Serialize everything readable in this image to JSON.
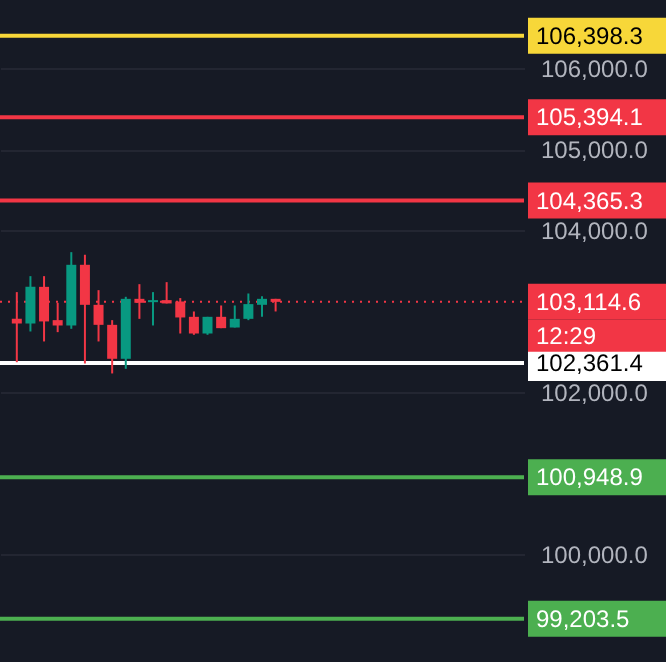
{
  "chart_data": {
    "type": "candlestick",
    "categories": [
      null,
      null,
      null,
      null,
      null,
      null,
      null,
      null,
      null,
      null,
      null,
      null,
      null,
      null,
      null,
      null,
      null,
      null,
      null,
      null,
      null,
      null,
      null,
      null,
      null,
      null,
      null,
      null,
      null,
      null,
      null,
      null,
      null,
      null,
      null,
      null,
      null
    ],
    "ohlc": [
      [
        102905,
        103235,
        102370,
        102848
      ],
      [
        102848,
        103432,
        102749,
        103300
      ],
      [
        103300,
        103432,
        102626,
        102873
      ],
      [
        102889,
        103103,
        102741,
        102823
      ],
      [
        102823,
        103728,
        102782,
        103572
      ],
      [
        103572,
        103696,
        102354,
        103078
      ],
      [
        103078,
        103259,
        102626,
        102831
      ],
      [
        102831,
        102889,
        102231,
        102412
      ],
      [
        102412,
        103177,
        102288,
        103152
      ],
      [
        103152,
        103333,
        102905,
        103103
      ],
      [
        103111,
        103235,
        102823,
        103136
      ],
      [
        103136,
        103358,
        103095,
        103095
      ],
      [
        103119,
        103161,
        102724,
        102922
      ],
      [
        102930,
        102996,
        102708,
        102724
      ],
      [
        102724,
        102930,
        102708,
        102930
      ],
      [
        102930,
        103070,
        102790,
        102790
      ],
      [
        102798,
        103070,
        102798,
        102905
      ],
      [
        102905,
        103218,
        102889,
        103087
      ],
      [
        103078,
        103185,
        102930,
        103152
      ],
      [
        103152,
        103152,
        102996,
        103114.6
      ],
      null,
      null,
      null,
      null,
      null,
      null,
      null,
      null,
      null,
      null,
      null,
      null,
      null,
      null,
      null,
      null,
      null
    ],
    "colors": [
      "#f23645",
      "#089981",
      "#f23645",
      "#f23645",
      "#089981",
      "#f23645",
      "#f23645",
      "#f23645",
      "#089981",
      "#f23645",
      "#089981",
      "#f23645",
      "#f23645",
      "#f23645",
      "#089981",
      "#f23645",
      "#089981",
      "#089981",
      "#089981",
      "#f23645",
      null,
      null,
      null,
      null,
      null,
      null,
      null,
      null,
      null,
      null,
      null,
      null,
      null,
      null,
      null,
      null,
      null
    ],
    "ylim": [
      98670,
      106840
    ],
    "yticks": [
      {
        "value": 100000,
        "label": "100,000.0"
      },
      {
        "value": 102000,
        "label": "102,000.0"
      },
      {
        "value": 104000,
        "label": "104,000.0"
      },
      {
        "value": 105000,
        "label": "105,000.0"
      },
      {
        "value": 106000,
        "label": "106,000.0"
      }
    ],
    "grid": "y",
    "ref_lines": [
      {
        "axis": "y",
        "value": 106398.3,
        "label": "106,398.3",
        "color": "#f7d739",
        "line_style": "solid"
      },
      {
        "axis": "y",
        "value": 105394.1,
        "label": "105,394.1",
        "color": "#f23645",
        "line_style": "solid"
      },
      {
        "axis": "y",
        "value": 104365.3,
        "label": "104,365.3",
        "color": "#f23645",
        "line_style": "solid"
      },
      {
        "axis": "y",
        "value": 102361.4,
        "label": "102,361.4",
        "color": "#ffffff",
        "line_style": "solid"
      },
      {
        "axis": "y",
        "value": 100948.9,
        "label": "100,948.9",
        "color": "#4caf50",
        "line_style": "solid"
      },
      {
        "axis": "y",
        "value": 99203.5,
        "label": "99,203.5",
        "color": "#4caf50",
        "line_style": "solid"
      },
      {
        "axis": "y",
        "value": 103114.6,
        "label": "103,114.6",
        "color": "#f23645",
        "line_style": "dotted"
      }
    ],
    "annotations": [
      "12:29"
    ]
  }
}
